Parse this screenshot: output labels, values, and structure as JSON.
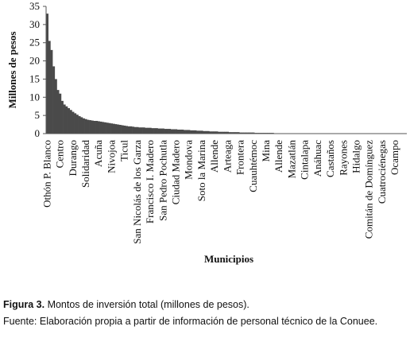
{
  "chart_data": {
    "type": "bar",
    "ylabel": "Millones de pesos",
    "xlabel": "Municipios",
    "color": "#4a4a4a",
    "ylim": [
      0,
      35
    ],
    "yticks": [
      0,
      5,
      10,
      15,
      20,
      25,
      30,
      35
    ],
    "grid": false,
    "categories": [
      "Othón P. Blanco",
      null,
      null,
      null,
      null,
      null,
      "Centro",
      null,
      null,
      null,
      null,
      null,
      "Durango",
      null,
      null,
      null,
      null,
      null,
      "Solidaridad",
      null,
      null,
      null,
      null,
      null,
      "Acuña",
      null,
      null,
      null,
      null,
      null,
      "Nivojoa",
      null,
      null,
      null,
      null,
      null,
      "Ticul",
      null,
      null,
      null,
      null,
      null,
      "San Nicolás de los Garza",
      null,
      null,
      null,
      null,
      null,
      "Francisco I. Madero",
      null,
      null,
      null,
      null,
      null,
      "San Pedro Pochutla",
      null,
      null,
      null,
      null,
      null,
      "Ciudad Madero",
      null,
      null,
      null,
      null,
      null,
      "Mondova",
      null,
      null,
      null,
      null,
      null,
      "Soto la Marina",
      null,
      null,
      null,
      null,
      null,
      "Allende",
      null,
      null,
      null,
      null,
      null,
      "Arteaga",
      null,
      null,
      null,
      null,
      null,
      "Frontera",
      null,
      null,
      null,
      null,
      null,
      "Cuauhtémoc",
      null,
      null,
      null,
      null,
      null,
      "Mina",
      null,
      null,
      null,
      null,
      null,
      "Allende",
      null,
      null,
      null,
      null,
      null,
      "Mazatlán",
      null,
      null,
      null,
      null,
      null,
      "Cintalapa",
      null,
      null,
      null,
      null,
      null,
      "Anáhuac",
      null,
      null,
      null,
      null,
      null,
      "Castaños",
      null,
      null,
      null,
      null,
      null,
      "Rayones",
      null,
      null,
      null,
      null,
      null,
      "Hidalgo",
      null,
      null,
      null,
      null,
      null,
      "Comitán de Domínguez",
      null,
      null,
      null,
      null,
      null,
      "Cuatrociénegas",
      null,
      null,
      null,
      null,
      null,
      "Ocampo",
      null,
      null,
      null,
      null,
      null
    ],
    "values": [
      33,
      25.5,
      23,
      18.5,
      15,
      12,
      11,
      9,
      8,
      7.5,
      7,
      6.5,
      6,
      5.6,
      5.2,
      4.8,
      4.5,
      4.2,
      4,
      3.8,
      3.7,
      3.6,
      3.5,
      3.5,
      3.4,
      3.3,
      3.2,
      3.1,
      3,
      2.9,
      2.8,
      2.7,
      2.6,
      2.5,
      2.4,
      2.3,
      2.2,
      2.1,
      2,
      2,
      1.9,
      1.8,
      1.8,
      1.7,
      1.7,
      1.7,
      1.6,
      1.6,
      1.6,
      1.5,
      1.5,
      1.5,
      1.4,
      1.4,
      1.4,
      1.3,
      1.3,
      1.3,
      1.2,
      1.2,
      1.2,
      1.1,
      1.1,
      1.1,
      1,
      1,
      1,
      0.9,
      0.9,
      0.9,
      0.8,
      0.8,
      0.8,
      0.7,
      0.7,
      0.7,
      0.6,
      0.6,
      0.6,
      0.6,
      0.5,
      0.5,
      0.5,
      0.5,
      0.5,
      0.4,
      0.4,
      0.4,
      0.4,
      0.4,
      0.3,
      0.3,
      0.3,
      0.3,
      0.3,
      0.3,
      0.3,
      0.2,
      0.2,
      0.2,
      0.2,
      0.2,
      0.2,
      0.2,
      0.2,
      0.2,
      0.1,
      0.1,
      0.1,
      0.1,
      0.1,
      0.1,
      0.1,
      0.1,
      0.1,
      0.1,
      0.1,
      0.1,
      0.1,
      0.1,
      0,
      0,
      0,
      0,
      0,
      0,
      0,
      0,
      0,
      0,
      0,
      0,
      0,
      0,
      0,
      0,
      0,
      0,
      0,
      0,
      0,
      0,
      0,
      0,
      0,
      0,
      0,
      0,
      0,
      0,
      0,
      0,
      0,
      0,
      0,
      0,
      0,
      0,
      0,
      0,
      0,
      0,
      0,
      0,
      0,
      0,
      0,
      0
    ]
  },
  "caption": {
    "figure": "Figura 3.",
    "text": " Montos de inversión total (millones de pesos).",
    "source": "Fuente: Elaboración propia a partir de información de personal técnico de la Conuee."
  }
}
